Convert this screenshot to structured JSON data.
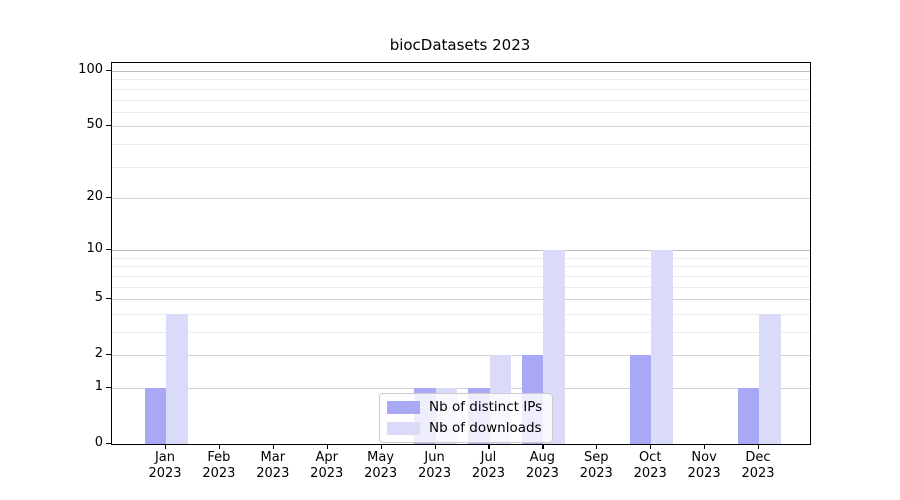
{
  "title": "biocDatasets 2023",
  "chart_data": {
    "type": "bar",
    "title": "biocDatasets 2023",
    "categories": [
      "Jan 2023",
      "Feb 2023",
      "Mar 2023",
      "Apr 2023",
      "May 2023",
      "Jun 2023",
      "Jul 2023",
      "Aug 2023",
      "Sep 2023",
      "Oct 2023",
      "Nov 2023",
      "Dec 2023"
    ],
    "series": [
      {
        "name": "Nb of distinct IPs",
        "color": "#a8a8f4",
        "values": [
          1,
          0,
          0,
          0,
          0,
          1,
          1,
          2,
          0,
          2,
          0,
          1
        ]
      },
      {
        "name": "Nb of downloads",
        "color": "#dadaf9",
        "values": [
          4,
          0,
          0,
          0,
          0,
          1,
          2,
          10,
          0,
          10,
          0,
          4
        ]
      }
    ],
    "xlabel": "",
    "ylabel": "",
    "yscale": "log1p",
    "ylim": [
      0,
      105
    ],
    "yticks": [
      0,
      1,
      2,
      5,
      10,
      20,
      50,
      100
    ],
    "minor_gridlines": [
      3,
      4,
      6,
      7,
      8,
      9,
      30,
      40,
      60,
      70,
      80,
      90
    ],
    "grid": true,
    "legend_position": "lower center"
  },
  "legend": {
    "items": [
      {
        "label": "Nb of distinct IPs"
      },
      {
        "label": "Nb of downloads"
      }
    ]
  },
  "colors": {
    "bar_dark": "#a8a8f4",
    "bar_light": "#dadaf9",
    "gridline_decade": "#bcbcbc",
    "gridline_major": "#d4d4d4",
    "gridline_minor": "#ececec",
    "spine": "#000000",
    "background": "#ffffff"
  }
}
